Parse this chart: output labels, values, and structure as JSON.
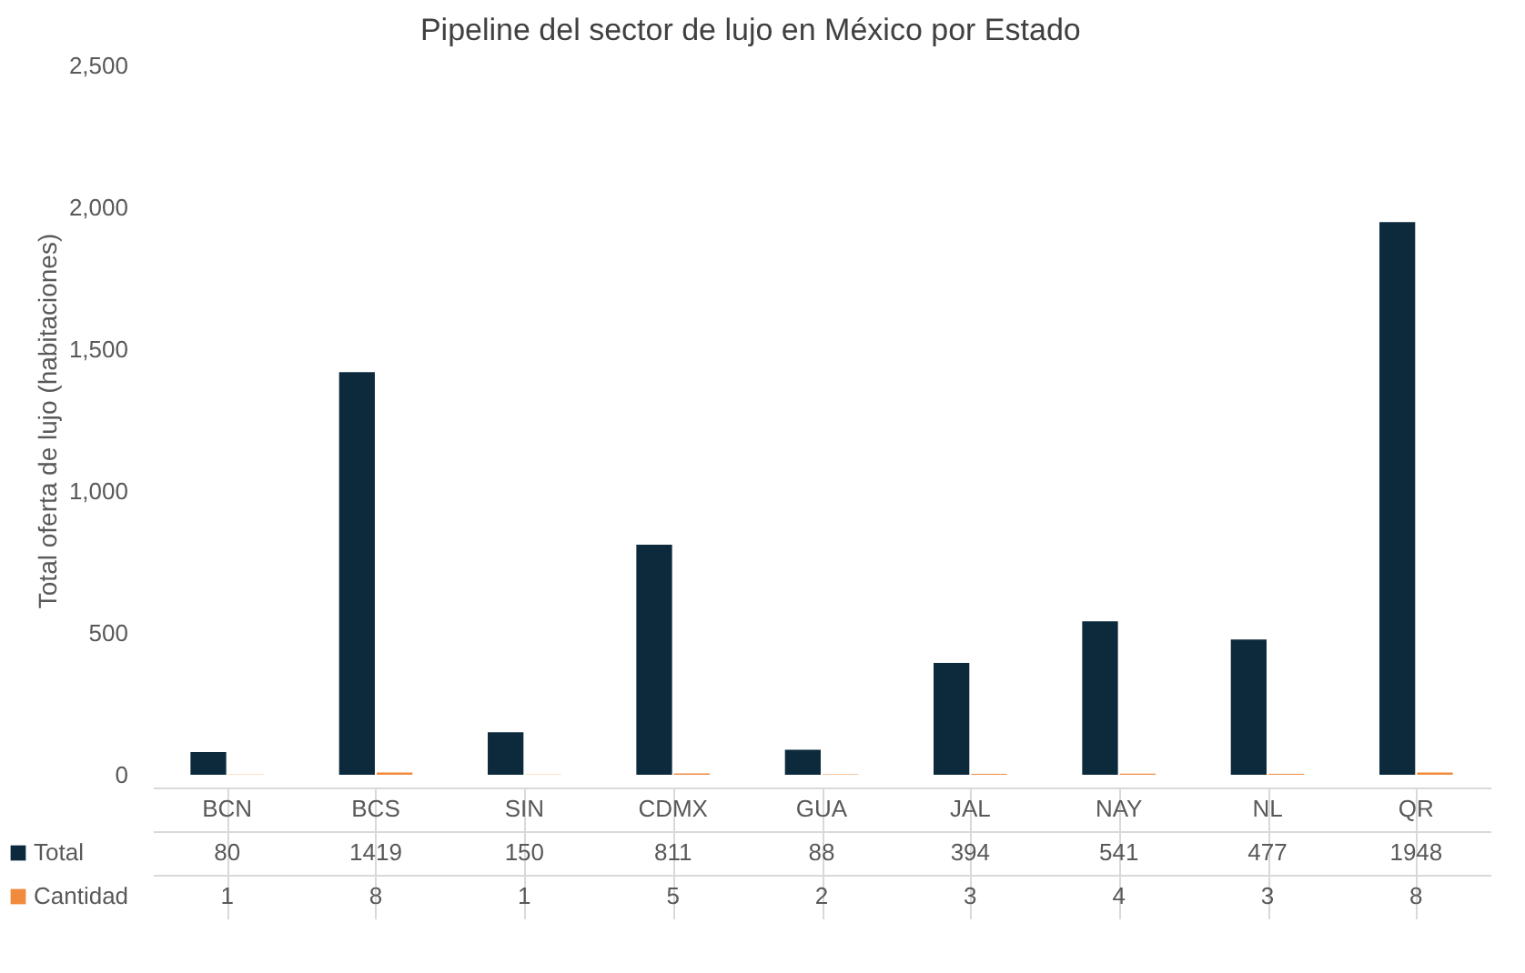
{
  "chart_data": {
    "type": "bar",
    "title": "Pipeline del sector de lujo en México por Estado",
    "ylabel": "Total oferta de lujo (habitaciones)",
    "categories": [
      "BCN",
      "BCS",
      "SIN",
      "CDMX",
      "GUA",
      "JAL",
      "NAY",
      "NL",
      "QR"
    ],
    "series": [
      {
        "name": "Total",
        "color": "#0d2a3d",
        "values": [
          80,
          1419,
          150,
          811,
          88,
          394,
          541,
          477,
          1948
        ]
      },
      {
        "name": "Cantidad",
        "color": "#f08a3c",
        "values": [
          1,
          8,
          1,
          5,
          2,
          3,
          4,
          3,
          8
        ]
      }
    ],
    "ylim": [
      0,
      2500
    ],
    "yticks": [
      0,
      500,
      {
        "value": 1000,
        "label": "1,000"
      },
      {
        "value": 1500,
        "label": "1,500"
      },
      {
        "value": 2000,
        "label": "2,000"
      },
      {
        "value": 2500,
        "label": "2,500"
      }
    ],
    "grid": false,
    "legend": "bottom",
    "data_labels": true
  }
}
